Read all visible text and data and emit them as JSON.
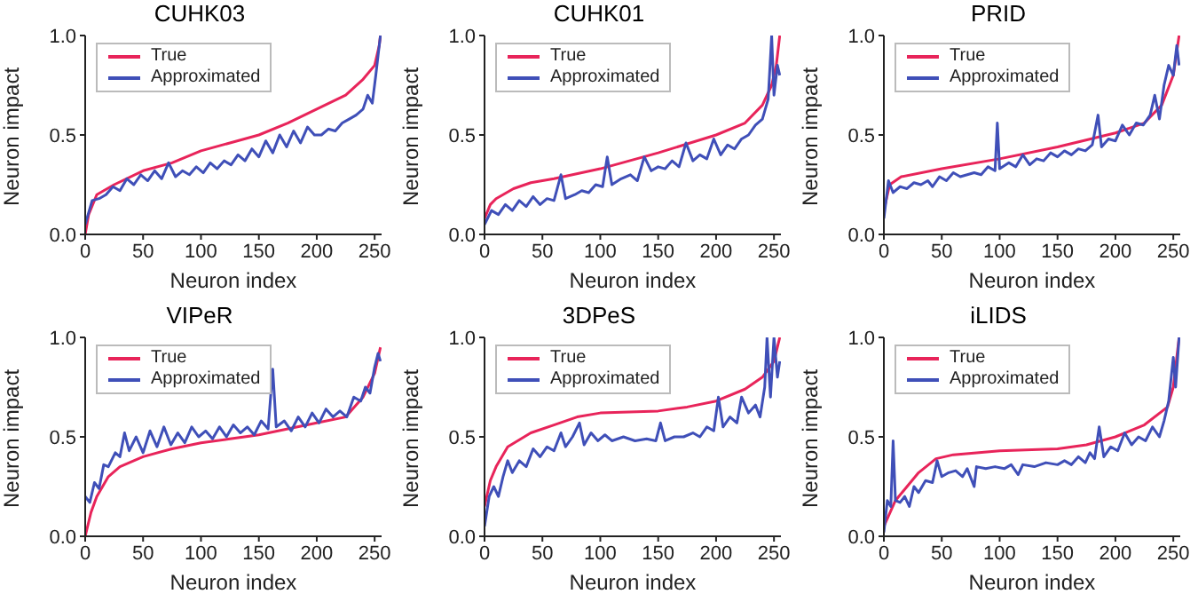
{
  "chart_data": [
    {
      "type": "line",
      "title": "CUHK03",
      "xlabel": "Neuron index",
      "ylabel": "Neuron impact",
      "xlim": [
        0,
        256
      ],
      "xticks": [
        0,
        50,
        100,
        150,
        200,
        250
      ],
      "ylim": [
        0,
        1
      ],
      "yticks": [
        {
          "value": 0,
          "label": "0.0"
        },
        {
          "value": 0.5,
          "label": "0.5"
        },
        {
          "value": 1,
          "label": "1.0"
        }
      ],
      "legend": "top left",
      "series": [
        {
          "name": "True",
          "color": "#e8245a",
          "x": [
            0,
            3,
            10,
            25,
            50,
            75,
            100,
            125,
            150,
            175,
            200,
            225,
            240,
            250,
            254,
            255
          ],
          "values": [
            0,
            0.1,
            0.2,
            0.25,
            0.32,
            0.36,
            0.42,
            0.46,
            0.5,
            0.56,
            0.63,
            0.7,
            0.78,
            0.85,
            0.95,
            1.0
          ]
        },
        {
          "name": "Approximated",
          "color": "#3f4fb8",
          "x": [
            0,
            6,
            12,
            18,
            24,
            30,
            36,
            42,
            48,
            54,
            60,
            66,
            72,
            78,
            84,
            90,
            96,
            102,
            108,
            114,
            120,
            126,
            132,
            138,
            144,
            150,
            156,
            162,
            168,
            174,
            180,
            186,
            192,
            198,
            204,
            210,
            216,
            222,
            228,
            234,
            240,
            244,
            248,
            251,
            253,
            255
          ],
          "values": [
            0.05,
            0.17,
            0.18,
            0.2,
            0.24,
            0.22,
            0.28,
            0.25,
            0.3,
            0.27,
            0.32,
            0.28,
            0.36,
            0.29,
            0.32,
            0.3,
            0.34,
            0.31,
            0.36,
            0.33,
            0.37,
            0.35,
            0.4,
            0.37,
            0.43,
            0.39,
            0.47,
            0.41,
            0.5,
            0.44,
            0.52,
            0.46,
            0.54,
            0.5,
            0.5,
            0.53,
            0.52,
            0.56,
            0.58,
            0.6,
            0.63,
            0.7,
            0.66,
            0.8,
            0.9,
            1.0
          ]
        }
      ]
    },
    {
      "type": "line",
      "title": "CUHK01",
      "xlabel": "Neuron index",
      "ylabel": "Neuron impact",
      "xlim": [
        0,
        256
      ],
      "xticks": [
        0,
        50,
        100,
        150,
        200,
        250
      ],
      "ylim": [
        0,
        1
      ],
      "yticks": [
        {
          "value": 0,
          "label": "0.0"
        },
        {
          "value": 0.5,
          "label": "0.5"
        },
        {
          "value": 1,
          "label": "1.0"
        }
      ],
      "legend": "top left",
      "series": [
        {
          "name": "True",
          "color": "#e8245a",
          "x": [
            0,
            5,
            10,
            25,
            40,
            60,
            100,
            150,
            200,
            225,
            240,
            248,
            252,
            255
          ],
          "values": [
            0.08,
            0.15,
            0.18,
            0.23,
            0.26,
            0.28,
            0.33,
            0.41,
            0.5,
            0.56,
            0.65,
            0.75,
            0.85,
            1.0
          ]
        },
        {
          "name": "Approximated",
          "color": "#3f4fb8",
          "x": [
            0,
            6,
            12,
            18,
            24,
            30,
            36,
            42,
            48,
            54,
            60,
            66,
            70,
            78,
            84,
            90,
            96,
            102,
            106,
            110,
            118,
            126,
            132,
            138,
            144,
            150,
            156,
            162,
            168,
            174,
            180,
            186,
            192,
            198,
            204,
            210,
            216,
            222,
            228,
            234,
            240,
            245,
            248,
            250,
            253,
            255
          ],
          "values": [
            0.05,
            0.12,
            0.1,
            0.15,
            0.12,
            0.17,
            0.14,
            0.19,
            0.15,
            0.18,
            0.17,
            0.3,
            0.18,
            0.2,
            0.22,
            0.21,
            0.25,
            0.24,
            0.39,
            0.25,
            0.28,
            0.3,
            0.27,
            0.39,
            0.32,
            0.34,
            0.33,
            0.37,
            0.34,
            0.46,
            0.37,
            0.4,
            0.38,
            0.48,
            0.4,
            0.45,
            0.43,
            0.48,
            0.5,
            0.55,
            0.58,
            0.68,
            1.0,
            0.7,
            0.85,
            0.8
          ]
        }
      ]
    },
    {
      "type": "line",
      "title": "PRID",
      "xlabel": "Neuron index",
      "ylabel": "Neuron impact",
      "xlim": [
        0,
        256
      ],
      "xticks": [
        0,
        50,
        100,
        150,
        200,
        250
      ],
      "ylim": [
        0,
        1
      ],
      "yticks": [
        {
          "value": 0,
          "label": "0.0"
        },
        {
          "value": 0.5,
          "label": "0.5"
        },
        {
          "value": 1,
          "label": "1.0"
        }
      ],
      "legend": "top left",
      "series": [
        {
          "name": "True",
          "color": "#e8245a",
          "x": [
            0,
            5,
            15,
            50,
            100,
            150,
            200,
            225,
            240,
            250,
            255
          ],
          "values": [
            0.12,
            0.25,
            0.29,
            0.33,
            0.38,
            0.44,
            0.51,
            0.56,
            0.65,
            0.8,
            1.0
          ]
        },
        {
          "name": "Approximated",
          "color": "#3f4fb8",
          "x": [
            0,
            4,
            8,
            14,
            20,
            26,
            32,
            38,
            42,
            48,
            54,
            60,
            66,
            72,
            78,
            84,
            90,
            96,
            98,
            100,
            108,
            114,
            120,
            126,
            132,
            138,
            144,
            150,
            156,
            162,
            168,
            174,
            180,
            185,
            188,
            194,
            200,
            206,
            212,
            218,
            224,
            230,
            234,
            238,
            242,
            246,
            250,
            253,
            255
          ],
          "values": [
            0.08,
            0.27,
            0.21,
            0.24,
            0.23,
            0.26,
            0.25,
            0.27,
            0.24,
            0.29,
            0.27,
            0.31,
            0.29,
            0.3,
            0.31,
            0.3,
            0.34,
            0.32,
            0.56,
            0.33,
            0.36,
            0.34,
            0.4,
            0.35,
            0.38,
            0.37,
            0.41,
            0.39,
            0.42,
            0.4,
            0.43,
            0.42,
            0.45,
            0.6,
            0.44,
            0.48,
            0.47,
            0.55,
            0.5,
            0.56,
            0.55,
            0.6,
            0.7,
            0.58,
            0.75,
            0.85,
            0.8,
            0.95,
            0.85
          ]
        }
      ]
    },
    {
      "type": "line",
      "title": "VIPeR",
      "xlabel": "Neuron index",
      "ylabel": "Neuron impact",
      "xlim": [
        0,
        256
      ],
      "xticks": [
        0,
        50,
        100,
        150,
        200,
        250
      ],
      "ylim": [
        0,
        1
      ],
      "yticks": [
        {
          "value": 0,
          "label": "0.0"
        },
        {
          "value": 0.5,
          "label": "0.5"
        },
        {
          "value": 1,
          "label": "1.0"
        }
      ],
      "legend": "top left",
      "series": [
        {
          "name": "True",
          "color": "#e8245a",
          "x": [
            0,
            5,
            10,
            20,
            30,
            50,
            75,
            100,
            125,
            150,
            175,
            200,
            225,
            240,
            250,
            255
          ],
          "values": [
            0,
            0.12,
            0.2,
            0.3,
            0.35,
            0.4,
            0.44,
            0.47,
            0.49,
            0.51,
            0.54,
            0.57,
            0.6,
            0.7,
            0.82,
            0.95
          ]
        },
        {
          "name": "Approximated",
          "color": "#3f4fb8",
          "x": [
            0,
            4,
            8,
            12,
            16,
            20,
            26,
            30,
            34,
            38,
            44,
            50,
            56,
            62,
            68,
            74,
            80,
            86,
            92,
            98,
            104,
            110,
            116,
            122,
            128,
            134,
            140,
            146,
            152,
            158,
            162,
            165,
            172,
            178,
            184,
            190,
            196,
            202,
            208,
            214,
            220,
            226,
            232,
            238,
            242,
            246,
            250,
            253,
            255
          ],
          "values": [
            0.2,
            0.17,
            0.27,
            0.24,
            0.36,
            0.35,
            0.42,
            0.4,
            0.52,
            0.43,
            0.5,
            0.42,
            0.53,
            0.45,
            0.55,
            0.46,
            0.52,
            0.47,
            0.55,
            0.5,
            0.53,
            0.49,
            0.55,
            0.5,
            0.56,
            0.52,
            0.55,
            0.51,
            0.58,
            0.54,
            0.84,
            0.55,
            0.58,
            0.53,
            0.6,
            0.55,
            0.62,
            0.57,
            0.64,
            0.6,
            0.63,
            0.6,
            0.7,
            0.68,
            0.75,
            0.72,
            0.85,
            0.92,
            0.88
          ]
        }
      ]
    },
    {
      "type": "line",
      "title": "3DPeS",
      "xlabel": "Neuron index",
      "ylabel": "Neuron impact",
      "xlim": [
        0,
        256
      ],
      "xticks": [
        0,
        50,
        100,
        150,
        200,
        250
      ],
      "ylim": [
        0,
        1
      ],
      "yticks": [
        {
          "value": 0,
          "label": "0.0"
        },
        {
          "value": 0.5,
          "label": "0.5"
        },
        {
          "value": 1,
          "label": "1.0"
        }
      ],
      "legend": "top left",
      "series": [
        {
          "name": "True",
          "color": "#e8245a",
          "x": [
            0,
            5,
            10,
            20,
            40,
            60,
            80,
            100,
            150,
            175,
            200,
            225,
            240,
            250,
            255
          ],
          "values": [
            0.15,
            0.28,
            0.35,
            0.45,
            0.52,
            0.56,
            0.6,
            0.62,
            0.63,
            0.65,
            0.68,
            0.74,
            0.8,
            0.88,
            1.0
          ]
        },
        {
          "name": "Approximated",
          "color": "#3f4fb8",
          "x": [
            0,
            4,
            8,
            12,
            16,
            20,
            24,
            30,
            36,
            42,
            48,
            54,
            60,
            66,
            70,
            76,
            82,
            86,
            92,
            98,
            104,
            110,
            120,
            130,
            140,
            148,
            152,
            156,
            164,
            172,
            180,
            186,
            192,
            198,
            202,
            206,
            212,
            218,
            222,
            228,
            234,
            238,
            242,
            244,
            247,
            250,
            253,
            255
          ],
          "values": [
            0.05,
            0.2,
            0.25,
            0.2,
            0.3,
            0.38,
            0.32,
            0.38,
            0.35,
            0.44,
            0.4,
            0.45,
            0.43,
            0.52,
            0.45,
            0.5,
            0.57,
            0.46,
            0.52,
            0.48,
            0.51,
            0.48,
            0.5,
            0.48,
            0.49,
            0.48,
            0.57,
            0.48,
            0.5,
            0.5,
            0.52,
            0.5,
            0.55,
            0.53,
            0.7,
            0.55,
            0.6,
            0.57,
            0.7,
            0.62,
            0.66,
            0.6,
            0.75,
            1.0,
            0.7,
            1.0,
            0.8,
            0.88
          ]
        }
      ]
    },
    {
      "type": "line",
      "title": "iLIDS",
      "xlabel": "Neuron index",
      "ylabel": "Neuron impact",
      "xlim": [
        0,
        256
      ],
      "xticks": [
        0,
        50,
        100,
        150,
        200,
        250
      ],
      "ylim": [
        0,
        1
      ],
      "yticks": [
        {
          "value": 0,
          "label": "0.0"
        },
        {
          "value": 0.5,
          "label": "0.5"
        },
        {
          "value": 1,
          "label": "1.0"
        }
      ],
      "legend": "top left",
      "series": [
        {
          "name": "True",
          "color": "#e8245a",
          "x": [
            0,
            10,
            20,
            30,
            45,
            60,
            80,
            100,
            150,
            175,
            200,
            225,
            245,
            250,
            255
          ],
          "values": [
            0.05,
            0.18,
            0.25,
            0.32,
            0.39,
            0.41,
            0.42,
            0.43,
            0.44,
            0.46,
            0.5,
            0.56,
            0.65,
            0.75,
            1.0
          ]
        },
        {
          "name": "Approximated",
          "color": "#3f4fb8",
          "x": [
            0,
            3,
            6,
            8,
            10,
            14,
            18,
            22,
            26,
            30,
            36,
            42,
            46,
            50,
            56,
            62,
            68,
            72,
            78,
            80,
            88,
            96,
            104,
            110,
            116,
            120,
            130,
            140,
            150,
            156,
            162,
            168,
            174,
            178,
            182,
            186,
            190,
            196,
            202,
            208,
            214,
            220,
            226,
            232,
            238,
            242,
            246,
            250,
            252,
            255
          ],
          "values": [
            0.02,
            0.18,
            0.15,
            0.48,
            0.18,
            0.17,
            0.2,
            0.15,
            0.25,
            0.22,
            0.28,
            0.27,
            0.38,
            0.3,
            0.32,
            0.33,
            0.3,
            0.34,
            0.25,
            0.35,
            0.34,
            0.35,
            0.34,
            0.36,
            0.31,
            0.36,
            0.35,
            0.37,
            0.36,
            0.38,
            0.36,
            0.4,
            0.37,
            0.42,
            0.39,
            0.55,
            0.4,
            0.45,
            0.43,
            0.52,
            0.46,
            0.5,
            0.48,
            0.55,
            0.5,
            0.58,
            0.68,
            0.9,
            0.75,
            1.0
          ]
        }
      ]
    }
  ]
}
